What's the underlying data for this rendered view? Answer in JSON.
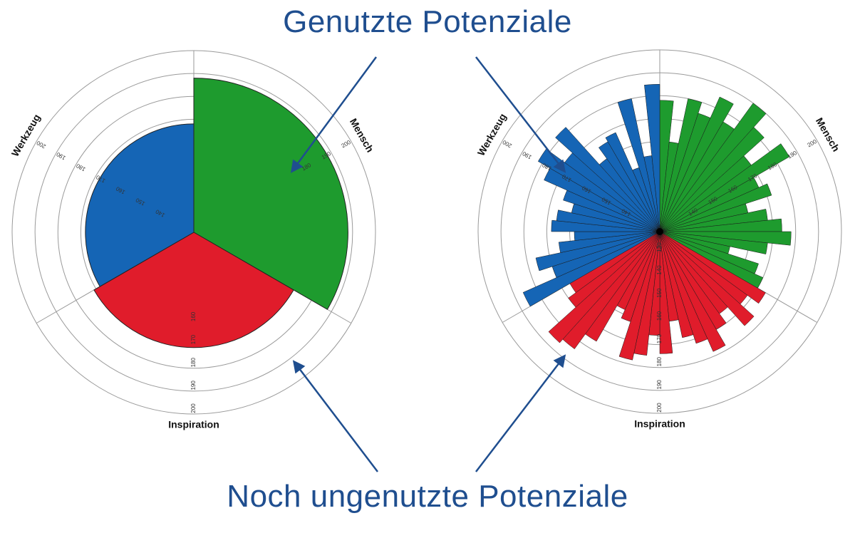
{
  "titles": {
    "top": "Genutzte Potenziale",
    "bottom": "Noch ungenutzte Potenziale"
  },
  "colors": {
    "mensch": "#1e9b2e",
    "werkzeug": "#1565b5",
    "inspiration": "#e01c2b",
    "grid": "#9a9a9a",
    "arrow": "#1f4e8f"
  },
  "ring_values": [
    130,
    140,
    150,
    160,
    170,
    180,
    190,
    200
  ],
  "axis_labels": {
    "mensch": "Mensch",
    "werkzeug": "Werkzeug",
    "inspiration": "Inspiration"
  },
  "chart_data": [
    {
      "type": "polar-area",
      "r_range": [
        130,
        200
      ],
      "sectors": [
        {
          "name": "Mensch",
          "value": 188
        },
        {
          "name": "Inspiration",
          "value": 171
        },
        {
          "name": "Werkzeug",
          "value": 168
        }
      ],
      "tick_labels": {
        "mensch": [
          "180",
          "190",
          "200"
        ],
        "werkzeug": [
          "140",
          "150",
          "160",
          "170",
          "180",
          "190",
          "200"
        ],
        "inspiration": [
          "160",
          "170",
          "180",
          "190",
          "200"
        ]
      }
    },
    {
      "type": "polar-bar",
      "r_range": [
        130,
        200
      ],
      "sectors": [
        {
          "name": "Mensch",
          "values": [
            178,
            160,
            180,
            175,
            185,
            176,
            190,
            182,
            170,
            186,
            168,
            172,
            160,
            168,
            174,
            178,
            168,
            152,
            166,
            170
          ]
        },
        {
          "name": "Inspiration",
          "values": [
            174,
            168,
            176,
            165,
            170,
            178,
            172,
            168,
            160,
            174,
            166,
            175,
            178,
            162,
            158,
            176,
            184,
            186,
            170,
            166
          ]
        },
        {
          "name": "Werkzeug",
          "values": [
            186,
            170,
            176,
            165,
            158,
            168,
            166,
            160,
            165,
            176,
            182,
            172,
            182,
            160,
            166,
            168,
            150,
            180,
            154,
            185
          ]
        }
      ],
      "tick_labels": {
        "mensch": [
          "140",
          "150",
          "160",
          "170",
          "180",
          "190",
          "200"
        ],
        "werkzeug": [
          "140",
          "150",
          "160",
          "170",
          "180",
          "190",
          "200"
        ],
        "inspiration": [
          "120",
          "130",
          "140",
          "150",
          "160",
          "170",
          "180",
          "190",
          "200"
        ]
      }
    }
  ]
}
